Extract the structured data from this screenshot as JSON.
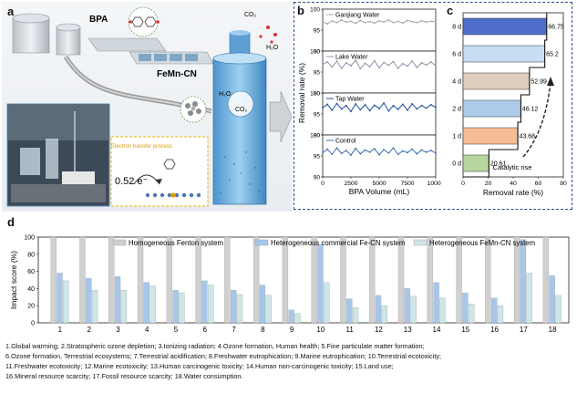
{
  "figure": {
    "panel_a": {
      "letter": "a",
      "labels": {
        "bpa": "BPA",
        "fem_cn": "FeMn-CN",
        "co2_top": "CO₂",
        "h2o_top": "H₂O",
        "h2o_mid": "H₂O",
        "co2_mid": "CO₂",
        "electron_transfer": "Electron transfer process",
        "electron_value": "0.52 e⁻"
      },
      "colors": {
        "reactor": "#5da6d9",
        "highlight": "#f0b400",
        "tubing": "#8a8a8a"
      }
    },
    "panel_b": {
      "letter": "b",
      "ylabel": "Removal rate (%)",
      "xlabel": "BPA Volume (mL)",
      "xticks": [
        "0",
        "2500",
        "5000",
        "7500",
        "10000"
      ]
    },
    "panel_c": {
      "letter": "c",
      "xlabel": "Removal rate (%)",
      "xticks": [
        "0",
        "20",
        "40",
        "60",
        "80"
      ],
      "annotation": "Catalytic rise"
    },
    "panel_d": {
      "letter": "d",
      "ylabel": "Impact score (%)",
      "yticks": [
        "0",
        "20",
        "40",
        "60",
        "80",
        "100"
      ],
      "legend": [
        "Homogeneous Fenton system",
        "Heterogeneous commercial Fe-CN system",
        "Heterogeneous FeMn-CN system"
      ]
    },
    "caption_lines": [
      "1.Global warming; 2.Stratospheric ozone depletion; 3.Ionizing radiation; 4.Ozone formation, Human health; 5.Fine particulate matter formation;",
      "6.Ozone formation, Terrestrial ecosystems; 7.Terrestrial acidification; 8.Freshwater eutrophication; 9.Marine eutrophication; 10.Terrestrial ecotoxicity;",
      "11.Freshwater ecotoxicity; 12.Marine ecotoxicity; 13.Human carcinogenic toxicity; 14.Human non-carcinogenic toxicity; 15.Land use;",
      "16.Mineral resource scarcity; 17.Fossil resource scarcity; 18.Water consumption."
    ]
  },
  "chart_data": [
    {
      "type": "line",
      "panel": "b",
      "xlabel": "BPA Volume (mL)",
      "ylabel": "Removal rate (%)",
      "xlim": [
        0,
        10000
      ],
      "ylim": [
        90,
        100
      ],
      "yticks": [
        90,
        95,
        100
      ],
      "series": [
        {
          "name": "Ganjiang Water",
          "color": "#9aa6b0",
          "values": [
            97.0,
            96.5,
            97.2,
            96.8,
            97.4,
            96.9,
            97.1,
            96.6,
            97.3,
            96.8,
            97.0,
            96.7,
            97.2,
            96.9,
            97.4,
            96.8,
            97.1,
            96.7,
            97.3,
            97.0,
            96.8,
            97.2,
            96.9,
            97.1,
            97.0
          ]
        },
        {
          "name": "Lake Water",
          "color": "#8a97a8",
          "values": [
            96.8,
            97.4,
            96.2,
            97.6,
            95.9,
            97.2,
            96.5,
            97.8,
            95.8,
            97.1,
            96.3,
            97.7,
            96.0,
            97.3,
            96.6,
            97.5,
            95.9,
            97.0,
            96.4,
            97.6,
            96.1,
            97.2,
            96.7,
            97.4,
            96.5
          ]
        },
        {
          "name": "Tap Water",
          "color": "#1f4f9a",
          "values": [
            96.5,
            97.3,
            95.9,
            97.5,
            96.2,
            97.0,
            95.6,
            97.4,
            96.0,
            97.2,
            95.8,
            97.1,
            96.3,
            97.6,
            95.7,
            97.0,
            96.1,
            97.3,
            95.9,
            97.4,
            96.2,
            97.0,
            96.4,
            97.2,
            96.6
          ]
        },
        {
          "name": "Control",
          "color": "#3a6db5",
          "values": [
            95.8,
            96.6,
            95.4,
            96.9,
            95.6,
            96.3,
            95.2,
            96.8,
            95.5,
            96.4,
            95.9,
            96.7,
            95.3,
            96.5,
            95.7,
            96.9,
            95.4,
            96.2,
            95.8,
            96.6,
            95.5,
            96.4,
            95.9,
            96.3,
            95.7
          ]
        }
      ]
    },
    {
      "type": "bar",
      "panel": "c",
      "orientation": "horizontal",
      "xlabel": "Removal rate (%)",
      "xlim": [
        0,
        80
      ],
      "categories": [
        "0 d",
        "1 d",
        "2 d",
        "4 d",
        "6 d",
        "8 d"
      ],
      "values": [
        20.61,
        43.68,
        46.12,
        52.99,
        65.2,
        66.75
      ],
      "labels": [
        "20.61",
        "43.68",
        "46.12",
        "52.99",
        "65.2",
        "66.75"
      ],
      "colors": [
        "#a8d08d",
        "#f4b183",
        "#9dc3e6",
        "#d9c5b2",
        "#bdd7ee",
        "#2f55c0"
      ]
    },
    {
      "type": "bar",
      "panel": "d",
      "ylabel": "Impact score (%)",
      "ylim": [
        0,
        100
      ],
      "categories": [
        "1",
        "2",
        "3",
        "4",
        "5",
        "6",
        "7",
        "8",
        "9",
        "10",
        "11",
        "12",
        "13",
        "14",
        "15",
        "16",
        "17",
        "18"
      ],
      "series": [
        {
          "name": "Homogeneous Fenton system",
          "color": "#d0d0d0",
          "values": [
            100,
            100,
            100,
            100,
            100,
            100,
            100,
            100,
            100,
            100,
            100,
            100,
            100,
            100,
            100,
            100,
            100,
            100
          ]
        },
        {
          "name": "Heterogeneous commercial Fe-CN system",
          "color": "#a7c7ea",
          "values": [
            58,
            52,
            54,
            47,
            38,
            49,
            38,
            44,
            15,
            91,
            28,
            32,
            40,
            47,
            35,
            29,
            97,
            55
          ]
        },
        {
          "name": "Heterogeneous FeMn-CN system",
          "color": "#cfe6e8",
          "values": [
            49,
            38,
            38,
            43,
            35,
            44,
            33,
            32,
            11,
            47,
            18,
            20,
            31,
            29,
            22,
            20,
            58,
            32
          ]
        }
      ]
    }
  ]
}
